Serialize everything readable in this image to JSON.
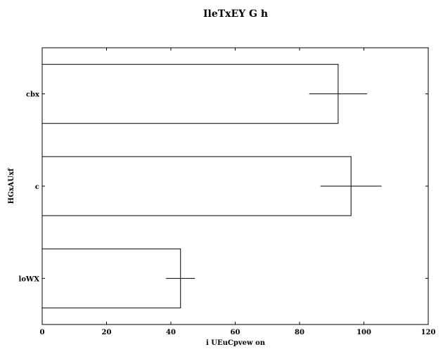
{
  "chart_data": {
    "type": "bar",
    "orientation": "horizontal",
    "title": "IleTxEY G  h",
    "xlabel": "i UEuCpvew on",
    "ylabel": "HGxAUxf",
    "categories": [
      "cbx",
      "c",
      "loWX"
    ],
    "values": [
      92,
      96,
      43
    ],
    "errors": [
      9,
      9.5,
      4.5
    ],
    "xlim": [
      0,
      120
    ],
    "xticks": [
      0,
      20,
      40,
      60,
      80,
      100,
      120
    ],
    "grid": false,
    "legend": "none",
    "bar_fill": "#ffffff",
    "bar_edge": "#000000"
  }
}
